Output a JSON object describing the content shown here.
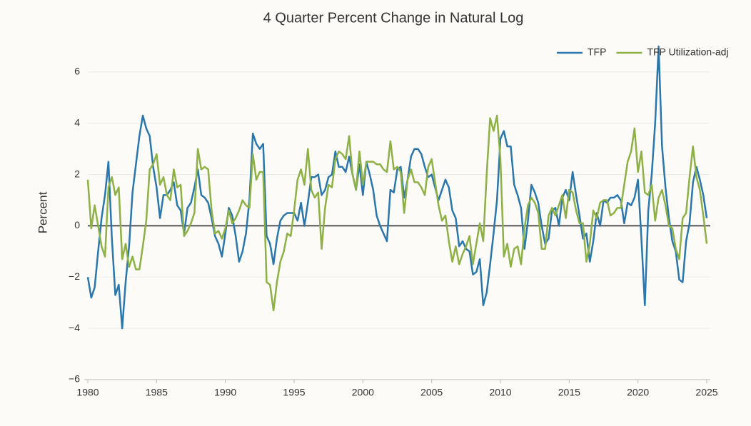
{
  "chart_data": {
    "type": "line",
    "title": "4 Quarter Percent Change in Natural Log",
    "y_label": "Percent",
    "xlim": [
      1980,
      2025
    ],
    "ylim": [
      -6,
      7
    ],
    "xticks": [
      1980,
      1985,
      1990,
      1995,
      2000,
      2005,
      2010,
      2015,
      2020,
      2025
    ],
    "yticks": [
      {
        "value": -6,
        "label": "−6"
      },
      {
        "value": -4,
        "label": "−4"
      },
      {
        "value": -2,
        "label": "−2"
      },
      0,
      2,
      4,
      6
    ],
    "grid": true,
    "legend": "top-right",
    "x": [
      1980,
      1980.25,
      1980.5,
      1980.75,
      1981,
      1981.25,
      1981.5,
      1981.75,
      1982,
      1982.25,
      1982.5,
      1982.75,
      1983,
      1983.25,
      1983.5,
      1983.75,
      1984,
      1984.25,
      1984.5,
      1984.75,
      1985,
      1985.25,
      1985.5,
      1985.75,
      1986,
      1986.25,
      1986.5,
      1986.75,
      1987,
      1987.25,
      1987.5,
      1987.75,
      1988,
      1988.25,
      1988.5,
      1988.75,
      1989,
      1989.25,
      1989.5,
      1989.75,
      1990,
      1990.25,
      1990.5,
      1990.75,
      1991,
      1991.25,
      1991.5,
      1991.75,
      1992,
      1992.25,
      1992.5,
      1992.75,
      1993,
      1993.25,
      1993.5,
      1993.75,
      1994,
      1994.25,
      1994.5,
      1994.75,
      1995,
      1995.25,
      1995.5,
      1995.75,
      1996,
      1996.25,
      1996.5,
      1996.75,
      1997,
      1997.25,
      1997.5,
      1997.75,
      1998,
      1998.25,
      1998.5,
      1998.75,
      1999,
      1999.25,
      1999.5,
      1999.75,
      2000,
      2000.25,
      2000.5,
      2000.75,
      2001,
      2001.25,
      2001.5,
      2001.75,
      2002,
      2002.25,
      2002.5,
      2002.75,
      2003,
      2003.25,
      2003.5,
      2003.75,
      2004,
      2004.25,
      2004.5,
      2004.75,
      2005,
      2005.25,
      2005.5,
      2005.75,
      2006,
      2006.25,
      2006.5,
      2006.75,
      2007,
      2007.25,
      2007.5,
      2007.75,
      2008,
      2008.25,
      2008.5,
      2008.75,
      2009,
      2009.25,
      2009.5,
      2009.75,
      2010,
      2010.25,
      2010.5,
      2010.75,
      2011,
      2011.25,
      2011.5,
      2011.75,
      2012,
      2012.25,
      2012.5,
      2012.75,
      2013,
      2013.25,
      2013.5,
      2013.75,
      2014,
      2014.25,
      2014.5,
      2014.75,
      2015,
      2015.25,
      2015.5,
      2015.75,
      2016,
      2016.25,
      2016.5,
      2016.75,
      2017,
      2017.25,
      2017.5,
      2017.75,
      2018,
      2018.25,
      2018.5,
      2018.75,
      2019,
      2019.25,
      2019.5,
      2019.75,
      2020,
      2020.25,
      2020.5,
      2020.75,
      2021,
      2021.25,
      2021.5,
      2021.75,
      2022,
      2022.25,
      2022.5,
      2022.75,
      2023,
      2023.25,
      2023.5,
      2023.75,
      2024,
      2024.25,
      2024.5,
      2024.75,
      2025
    ],
    "series": [
      {
        "name": "TFP",
        "color": "#2a77ad",
        "values": [
          -2.0,
          -2.8,
          -2.4,
          -1.0,
          0.3,
          1.2,
          2.5,
          -0.5,
          -2.7,
          -2.3,
          -4.0,
          -2.2,
          -0.8,
          1.3,
          2.4,
          3.5,
          4.3,
          3.8,
          3.5,
          2.3,
          1.5,
          0.3,
          1.2,
          1.2,
          1.4,
          1.7,
          0.8,
          0.6,
          -0.3,
          0.7,
          0.9,
          1.5,
          2.2,
          1.2,
          1.1,
          0.9,
          0.3,
          -0.4,
          -0.7,
          -1.2,
          -0.3,
          0.7,
          0.4,
          -0.4,
          -1.4,
          -1.0,
          -0.3,
          1.0,
          3.6,
          3.2,
          3.0,
          3.2,
          -0.4,
          -0.7,
          -1.5,
          -0.5,
          0.2,
          0.4,
          0.5,
          0.5,
          0.5,
          0.2,
          0.9,
          0.0,
          0.9,
          1.9,
          1.9,
          2.0,
          1.2,
          1.4,
          1.9,
          2.0,
          2.9,
          2.3,
          2.3,
          2.1,
          2.7,
          2.0,
          1.4,
          2.4,
          1.2,
          2.5,
          2.0,
          1.4,
          0.4,
          0.0,
          -0.3,
          -0.6,
          1.4,
          1.3,
          2.2,
          2.3,
          1.1,
          1.8,
          2.7,
          3.0,
          3.0,
          2.8,
          2.3,
          1.9,
          2.0,
          1.5,
          1.0,
          1.4,
          1.8,
          1.5,
          0.6,
          0.3,
          -0.8,
          -0.6,
          -0.9,
          -1.0,
          -1.9,
          -1.8,
          -1.3,
          -3.1,
          -2.6,
          -1.5,
          -0.3,
          1.0,
          3.4,
          3.7,
          3.1,
          3.1,
          1.6,
          1.2,
          0.7,
          -0.9,
          0.2,
          1.6,
          1.3,
          0.9,
          0.0,
          -0.7,
          -0.5,
          0.6,
          0.7,
          0.0,
          1.1,
          1.4,
          1.0,
          2.1,
          1.2,
          0.4,
          -0.5,
          -0.3,
          -1.4,
          -0.6,
          0.5,
          0.0,
          1.0,
          0.9,
          1.1,
          1.1,
          1.2,
          1.0,
          0.1,
          0.9,
          0.8,
          1.1,
          1.8,
          -0.5,
          -3.1,
          0.6,
          2.0,
          4.0,
          7.0,
          3.1,
          1.5,
          0.3,
          -0.6,
          -1.0,
          -2.1,
          -2.2,
          -0.6,
          0.1,
          1.7,
          2.3,
          1.8,
          1.2,
          0.3
        ]
      },
      {
        "name": "TFP Utilization-adj",
        "color": "#8db144",
        "values": [
          1.8,
          -0.1,
          0.8,
          0.0,
          -0.8,
          -1.2,
          1.5,
          1.9,
          1.2,
          1.5,
          -1.3,
          -0.7,
          -1.6,
          -1.2,
          -1.7,
          -1.7,
          -0.8,
          0.2,
          2.2,
          2.4,
          2.8,
          1.6,
          1.9,
          1.2,
          1.0,
          2.2,
          1.5,
          1.6,
          -0.4,
          -0.2,
          0.1,
          0.5,
          3.0,
          2.2,
          2.3,
          2.2,
          0.6,
          -0.3,
          -0.2,
          -0.5,
          -0.1,
          0.6,
          0.1,
          0.3,
          0.6,
          1.0,
          0.8,
          0.7,
          2.8,
          1.8,
          2.1,
          2.1,
          -2.2,
          -2.3,
          -3.3,
          -2.2,
          -1.4,
          -1.0,
          -0.3,
          -0.4,
          0.6,
          1.8,
          2.2,
          1.6,
          3.0,
          1.4,
          1.1,
          1.3,
          -0.9,
          0.7,
          1.6,
          1.5,
          2.6,
          2.9,
          2.8,
          2.6,
          3.5,
          2.0,
          1.4,
          2.9,
          1.6,
          2.5,
          2.5,
          2.5,
          2.4,
          2.4,
          2.2,
          2.1,
          3.3,
          2.2,
          2.3,
          2.1,
          0.5,
          1.8,
          2.2,
          1.7,
          1.7,
          1.5,
          1.2,
          2.3,
          2.6,
          1.7,
          0.8,
          0.2,
          0.4,
          -0.6,
          -1.4,
          -0.8,
          -1.5,
          -1.1,
          -0.8,
          -0.4,
          -1.5,
          -0.7,
          0.1,
          -0.6,
          2.0,
          4.2,
          3.7,
          4.3,
          2.6,
          -1.2,
          -0.7,
          -1.6,
          -0.9,
          -0.8,
          -1.5,
          -0.1,
          0.8,
          1.1,
          0.9,
          0.5,
          -0.9,
          -0.9,
          0.4,
          0.7,
          0.4,
          0.8,
          1.2,
          0.3,
          1.4,
          1.3,
          0.6,
          0.1,
          0.1,
          -1.4,
          -0.7,
          0.6,
          0.3,
          0.9,
          1.0,
          1.0,
          0.4,
          0.5,
          0.7,
          0.7,
          1.6,
          2.5,
          2.9,
          3.8,
          2.1,
          2.9,
          1.3,
          1.2,
          1.6,
          0.2,
          1.1,
          1.4,
          0.8,
          0.0,
          -0.1,
          -0.9,
          -1.3,
          0.3,
          0.5,
          1.9,
          3.1,
          1.9,
          1.4,
          0.4,
          -0.7
        ]
      }
    ]
  }
}
